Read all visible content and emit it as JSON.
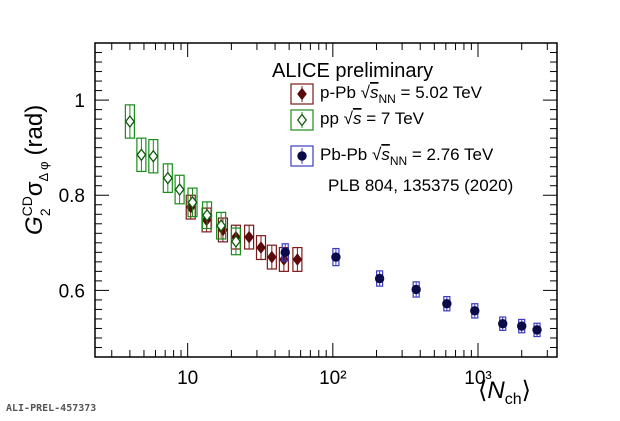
{
  "chart_data": {
    "type": "scatter",
    "title": "ALICE preliminary",
    "xlabel": "⟨N_ch⟩",
    "ylabel": "G₂^CD σ_Δφ (rad)",
    "xscale": "log",
    "xlim": [
      2.3,
      3500
    ],
    "ylim": [
      0.46,
      1.12
    ],
    "x_ticks": [
      {
        "value": 10,
        "label": "10"
      },
      {
        "value": 100,
        "label": "10²"
      },
      {
        "value": 1000,
        "label": "10³"
      }
    ],
    "y_ticks": [
      {
        "value": 0.6,
        "label": "0.6"
      },
      {
        "value": 0.8,
        "label": "0.8"
      },
      {
        "value": 1.0,
        "label": "1"
      }
    ],
    "annotation": "PLB 804, 135375 (2020)",
    "watermark": "ALI-PREL-457373",
    "legend_position": "top-right",
    "series": [
      {
        "name": "p-Pb √s_NN = 5.02 TeV",
        "color": "#7a1a1a",
        "marker": "filled-diamond",
        "points": [
          {
            "x": 10.5,
            "y": 0.775,
            "syst": 0.025
          },
          {
            "x": 13.5,
            "y": 0.748,
            "syst": 0.025
          },
          {
            "x": 17.5,
            "y": 0.727,
            "syst": 0.025
          },
          {
            "x": 21.5,
            "y": 0.712,
            "syst": 0.025
          },
          {
            "x": 26.5,
            "y": 0.712,
            "syst": 0.025
          },
          {
            "x": 32,
            "y": 0.69,
            "syst": 0.025
          },
          {
            "x": 38,
            "y": 0.67,
            "syst": 0.025
          },
          {
            "x": 46,
            "y": 0.665,
            "syst": 0.025
          },
          {
            "x": 57,
            "y": 0.665,
            "syst": 0.025
          }
        ]
      },
      {
        "name": "pp √s = 7 TeV",
        "color": "#1a8c1a",
        "marker": "open-diamond",
        "points": [
          {
            "x": 4.0,
            "y": 0.955,
            "syst": 0.035
          },
          {
            "x": 4.8,
            "y": 0.885,
            "syst": 0.035
          },
          {
            "x": 5.8,
            "y": 0.882,
            "syst": 0.035
          },
          {
            "x": 7.3,
            "y": 0.836,
            "syst": 0.03
          },
          {
            "x": 8.8,
            "y": 0.812,
            "syst": 0.03
          },
          {
            "x": 10.8,
            "y": 0.785,
            "syst": 0.03
          },
          {
            "x": 13.6,
            "y": 0.758,
            "syst": 0.028
          },
          {
            "x": 17.0,
            "y": 0.736,
            "syst": 0.028
          },
          {
            "x": 21.5,
            "y": 0.703,
            "syst": 0.028
          }
        ]
      },
      {
        "name": "Pb-Pb √s_NN = 2.76 TeV",
        "color": "#3a3ac8",
        "marker": "filled-circle",
        "points": [
          {
            "x": 47,
            "y": 0.68,
            "syst": 0.018
          },
          {
            "x": 105,
            "y": 0.67,
            "syst": 0.018
          },
          {
            "x": 210,
            "y": 0.625,
            "syst": 0.016
          },
          {
            "x": 375,
            "y": 0.602,
            "syst": 0.016
          },
          {
            "x": 610,
            "y": 0.572,
            "syst": 0.015
          },
          {
            "x": 950,
            "y": 0.557,
            "syst": 0.015
          },
          {
            "x": 1480,
            "y": 0.53,
            "syst": 0.014
          },
          {
            "x": 2000,
            "y": 0.525,
            "syst": 0.014
          },
          {
            "x": 2550,
            "y": 0.517,
            "syst": 0.014
          }
        ]
      }
    ]
  }
}
